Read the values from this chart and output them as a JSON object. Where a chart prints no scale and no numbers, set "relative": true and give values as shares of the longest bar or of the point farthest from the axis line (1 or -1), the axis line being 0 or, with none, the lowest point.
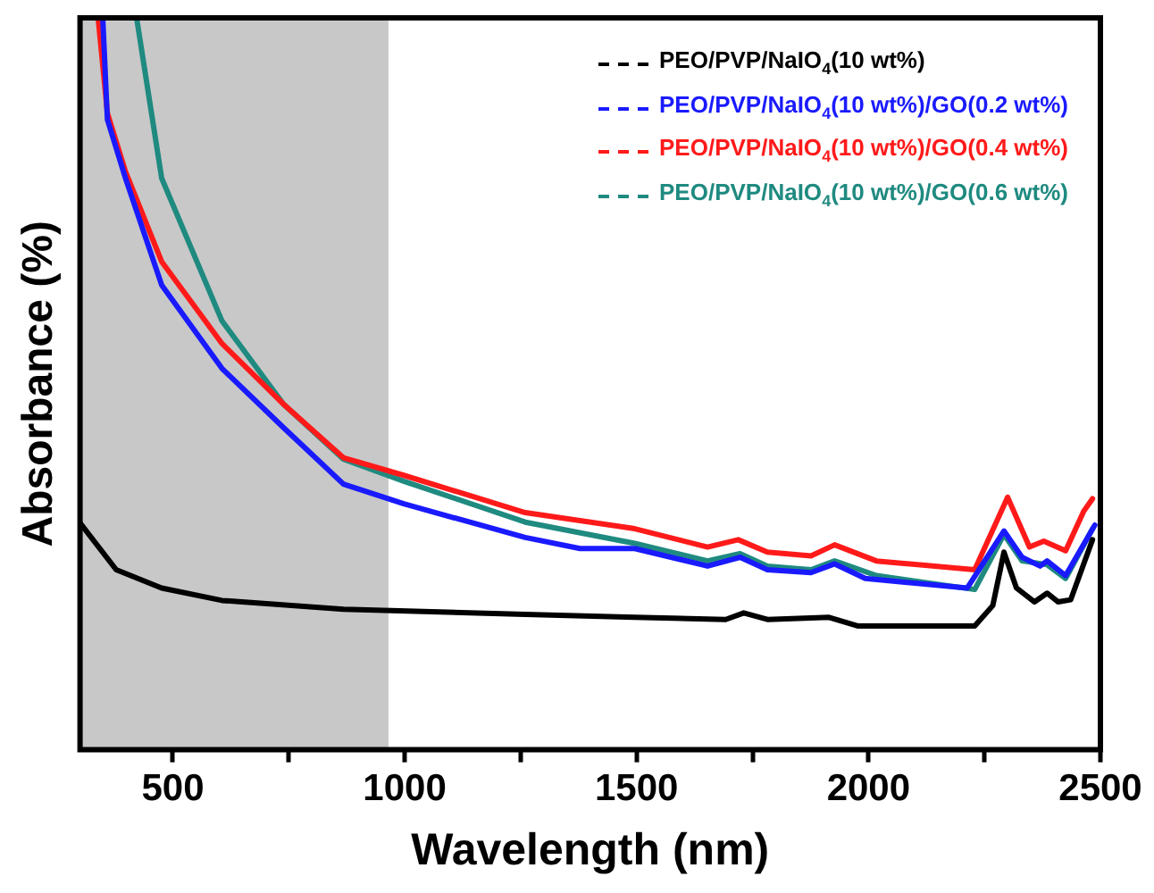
{
  "chart_data": {
    "type": "line",
    "xlabel": "Wavelength (nm)",
    "ylabel": "Absorbance (%)",
    "relative": true,
    "xlim": [
      300,
      2500
    ],
    "xticks": [
      500,
      {
        "value": 750,
        "label": null
      },
      1000,
      {
        "value": 1250,
        "label": null
      },
      1500,
      {
        "value": 1750,
        "label": null
      },
      2000,
      {
        "value": 2250,
        "label": null
      },
      2500
    ],
    "legend": "top right",
    "grid": false,
    "marker": "none",
    "line_style": "solid",
    "bands": [
      {
        "axis": "x",
        "from": 300,
        "to": 965,
        "color": "#c8c8c8"
      }
    ],
    "series": [
      {
        "name": "PEO/PVP/NaIO$_{4}$(10 wt%)",
        "color": "#000000",
        "x": [
          300,
          378,
          476,
          606,
          868,
          1260,
          1496,
          1692,
          1731,
          1782,
          1915,
          1978,
          2229,
          2268,
          2292,
          2319,
          2358,
          2385,
          2409,
          2436,
          2464,
          2483
        ],
        "values": [
          0.31,
          0.246,
          0.221,
          0.204,
          0.192,
          0.185,
          0.181,
          0.178,
          0.187,
          0.178,
          0.181,
          0.169,
          0.169,
          0.197,
          0.27,
          0.221,
          0.202,
          0.214,
          0.202,
          0.205,
          0.254,
          0.287
        ]
      },
      {
        "name": "PEO/PVP/NaIO$_{4}$(10 wt%)/GO(0.2 wt%)",
        "color": "#1a1aff",
        "x": [
          349,
          359,
          398,
          476,
          606,
          739,
          868,
          998,
          1260,
          1378,
          1496,
          1653,
          1723,
          1782,
          1876,
          1927,
          1993,
          2213,
          2292,
          2331,
          2370,
          2385,
          2425,
          2476,
          2488
        ],
        "values": [
          1,
          0.861,
          0.781,
          0.635,
          0.521,
          0.44,
          0.363,
          0.336,
          0.29,
          0.275,
          0.275,
          0.251,
          0.263,
          0.246,
          0.242,
          0.254,
          0.234,
          0.221,
          0.299,
          0.263,
          0.251,
          0.258,
          0.238,
          0.294,
          0.307
        ]
      },
      {
        "name": "PEO/PVP/NaIO$_{4}$(10 wt%)/GO(0.4 wt%)",
        "color": "#ff1a1a",
        "x": [
          339,
          359,
          398,
          476,
          606,
          739,
          868,
          998,
          1260,
          1496,
          1653,
          1719,
          1782,
          1876,
          1927,
          2017,
          2229,
          2300,
          2347,
          2378,
          2425,
          2464,
          2483
        ],
        "values": [
          1,
          0.87,
          0.79,
          0.667,
          0.555,
          0.472,
          0.399,
          0.375,
          0.324,
          0.302,
          0.277,
          0.287,
          0.27,
          0.265,
          0.28,
          0.258,
          0.246,
          0.345,
          0.277,
          0.285,
          0.272,
          0.326,
          0.343
        ]
      },
      {
        "name": "PEO/PVP/NaIO$_{4}$(10 wt%)/GO(0.6 wt%)",
        "color": "#1f8a80",
        "x": [
          422,
          476,
          606,
          739,
          868,
          998,
          1260,
          1496,
          1653,
          1723,
          1782,
          1876,
          1927,
          2017,
          2229,
          2292,
          2331,
          2385,
          2425,
          2483
        ],
        "values": [
          1,
          0.781,
          0.586,
          0.472,
          0.397,
          0.367,
          0.311,
          0.282,
          0.258,
          0.268,
          0.251,
          0.246,
          0.258,
          0.238,
          0.219,
          0.294,
          0.258,
          0.253,
          0.234,
          0.302
        ]
      }
    ]
  }
}
